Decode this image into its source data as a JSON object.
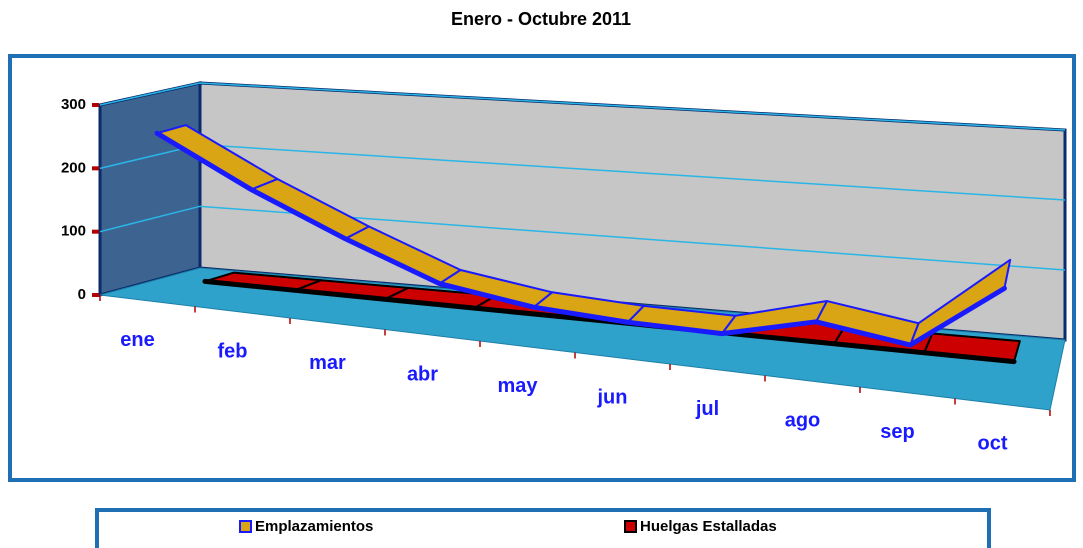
{
  "chart_data": {
    "type": "line3d",
    "title": "Enero - Octubre 2011",
    "categories": [
      "ene",
      "feb",
      "mar",
      "abr",
      "may",
      "jun",
      "jul",
      "ago",
      "sep",
      "oct"
    ],
    "series": [
      {
        "name": "Emplazamientos",
        "color": "#d9a514",
        "line_color": "#1a1aff",
        "values": [
          262,
          192,
          132,
          78,
          58,
          52,
          52,
          92,
          72,
          192
        ]
      },
      {
        "name": "Huelgas Estalladas",
        "color": "#cc0000",
        "line_color": "#000000",
        "values": [
          3,
          3,
          3,
          3,
          3,
          3,
          3,
          3,
          3,
          3
        ]
      }
    ],
    "ylim": [
      0,
      300
    ],
    "yticks": [
      0,
      100,
      200,
      300
    ],
    "grid": true,
    "legend": "bottom"
  }
}
